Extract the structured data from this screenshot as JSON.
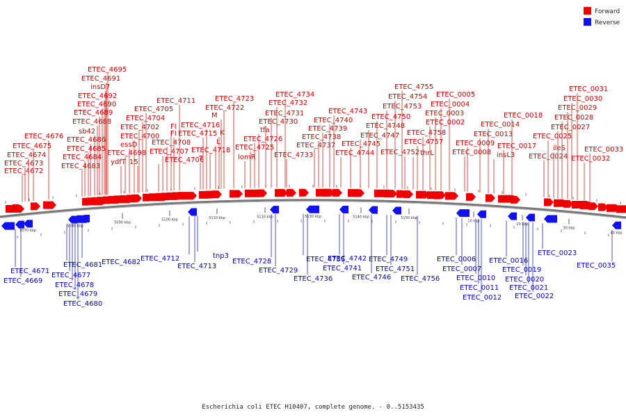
{
  "legend": [
    {
      "label": "Forward",
      "color": "#ee0000"
    },
    {
      "label": "Reverse",
      "color": "#1111ee"
    }
  ],
  "caption": "Escherichia coli ETEC H10407, complete genome. - 0..5153435",
  "ticks": [
    "5070 kbp",
    "5080 kbp",
    "5090 kbp",
    "5100 kbp",
    "5110 kbp",
    "5120 kbp",
    "5130 kbp",
    "5140 kbp",
    "5150 kbp",
    "10 kbp",
    "20 kbp",
    "30 kbp",
    "40 kbp"
  ],
  "forward_labels": [
    "ETEC_4672",
    "ETEC_4673",
    "ETEC_4674",
    "ETEC_4675",
    "ETEC_4676",
    "ETEC_4683",
    "ETEC_4684",
    "ETEC_4685",
    "ETEC_4686",
    "sb42",
    "ETEC_4688",
    "ETEC_4689",
    "ETEC_4690",
    "ETEC_4692",
    "insD7",
    "ETEC_4691",
    "ETEC_4695",
    "ydfT",
    "ETEC_4698",
    "essD",
    "ETEC_4700",
    "15",
    "ETEC_4702",
    "ETEC_4704",
    "ETEC_4705",
    "ETEC_4706",
    "ETEC_4707",
    "ETEC_4708",
    "FI",
    "FI",
    "ETEC_4711",
    "T",
    "ETEC_4715",
    "ETEC_4716",
    "ETEC_4718",
    "L",
    "K",
    "M",
    "ETEC_4722",
    "ETEC_4723",
    "lomR",
    "ETEC_4725",
    "ETEC_4726",
    "tfa",
    "ETEC_4730",
    "ETEC_4731",
    "ETEC_4732",
    "ETEC_4734",
    "ETEC_4733",
    "ETEC_4737",
    "ETEC_4738",
    "ETEC_4739",
    "ETEC_4740",
    "ETEC_4743",
    "ETEC_4744",
    "ETEC_4745",
    "ETEC_4747",
    "ETEC_4748",
    "ETEC_4750",
    "ETEC_4753",
    "ETEC_4754",
    "ETEC_4755",
    "ETEC_4752",
    "thrL",
    "ETEC_4757",
    "ETEC_4758",
    "ETEC_0002",
    "ETEC_0003",
    "ETEC_0004",
    "ETEC_0005",
    "ETEC_0008",
    "ETEC_0009",
    "ETEC_0013",
    "ETEC_0014",
    "insL3",
    "ETEC_0017",
    "ETEC_0018",
    "ETEC_0024",
    "ETEC_0025",
    "ileS",
    "ETEC_0027",
    "ETEC_0028",
    "ETEC_0029",
    "ETEC_0030",
    "ETEC_0031",
    "ETEC_0032",
    "ETEC_0033"
  ],
  "reverse_labels": [
    "ETEC_4671",
    "ETEC_4669",
    "ETEC_4681",
    "ETEC_4677",
    "ETEC_4678",
    "ETEC_4679",
    "ETEC_4680",
    "ETEC_4682",
    "ETEC_4712",
    "ETEC_4713",
    "tnp3",
    "ETEC_4728",
    "ETEC_4729",
    "ETEC_4735",
    "ETEC_4736",
    "ETEC_4742",
    "ETEC_4741",
    "ETEC_4746",
    "ETEC_4749",
    "ETEC_4751",
    "ETEC_4756",
    "ETEC_0006",
    "ETEC_0007",
    "ETEC_0010",
    "ETEC_0011",
    "ETEC_0012",
    "ETEC_0016",
    "ETEC_0019",
    "ETEC_0020",
    "ETEC_0021",
    "ETEC_0022",
    "ETEC_0023",
    "ETEC_0035"
  ]
}
